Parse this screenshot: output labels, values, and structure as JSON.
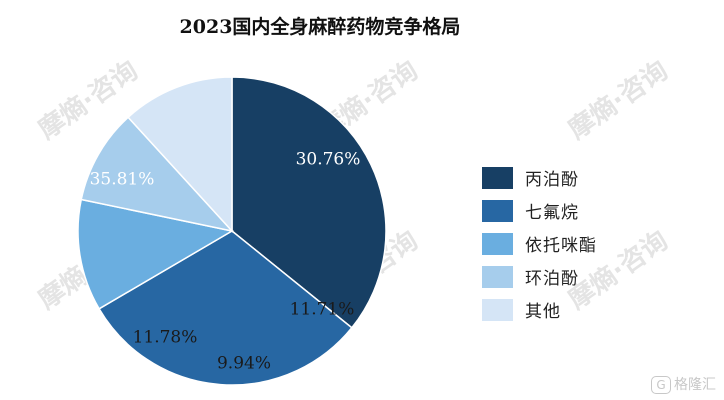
{
  "chart_data": {
    "type": "pie",
    "title": "2023国内全身麻醉药物竞争格局",
    "slices": [
      {
        "name": "丙泊酚",
        "value": 35.81,
        "label": "35.81%",
        "color": "#173f64"
      },
      {
        "name": "七氟烷",
        "value": 30.76,
        "label": "30.76%",
        "color": "#2767a3"
      },
      {
        "name": "依托咪酯",
        "value": 11.71,
        "label": "11.71%",
        "color": "#6aaee0"
      },
      {
        "name": "环泊酚",
        "value": 9.94,
        "label": "9.94%",
        "color": "#a6cdec"
      },
      {
        "name": "其他",
        "value": 11.78,
        "label": "11.78%",
        "color": "#d5e5f6"
      }
    ],
    "label_colors": [
      "#ffffff",
      "#ffffff",
      "#1a1a1a",
      "#1a1a1a",
      "#1a1a1a"
    ],
    "legend_position": "right"
  },
  "watermark": {
    "text": "摩熵·咨询"
  },
  "brand": {
    "logo": "G",
    "text": "格隆汇"
  }
}
